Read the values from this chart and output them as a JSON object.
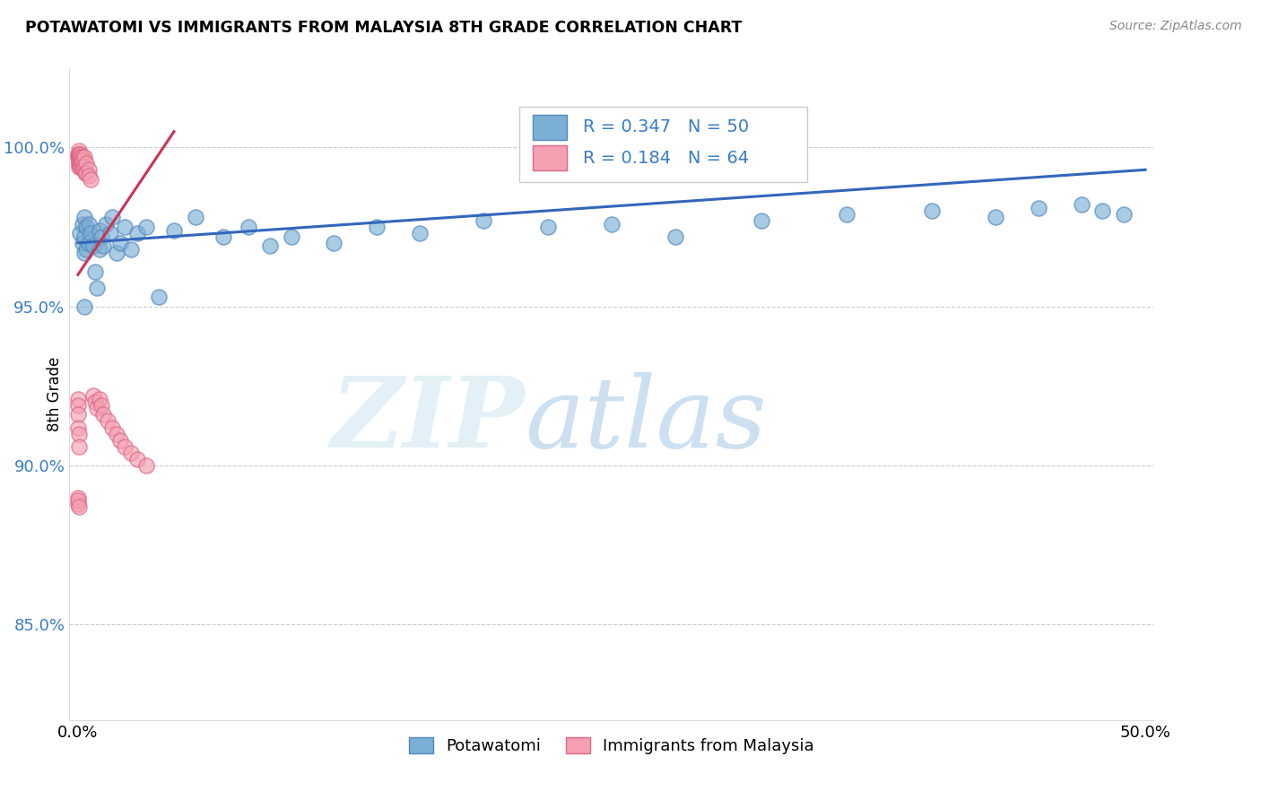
{
  "title": "POTAWATOMI VS IMMIGRANTS FROM MALAYSIA 8TH GRADE CORRELATION CHART",
  "source": "Source: ZipAtlas.com",
  "ylabel": "8th Grade",
  "blue_R": 0.347,
  "blue_N": 50,
  "pink_R": 0.184,
  "pink_N": 64,
  "blue_color": "#7BAFD4",
  "pink_color": "#F4A0B0",
  "blue_edge_color": "#5588BB",
  "pink_edge_color": "#DD6688",
  "blue_line_color": "#3366BB",
  "pink_line_color": "#CC3355",
  "legend_blue_label": "Potawatomi",
  "legend_pink_label": "Immigrants from Malaysia",
  "xlim": [
    -0.004,
    0.504
  ],
  "ylim": [
    0.82,
    1.025
  ],
  "yticks": [
    0.85,
    0.9,
    0.95,
    1.0
  ],
  "ytick_labels": [
    "85.0%",
    "90.0%",
    "95.0%",
    "100.0%"
  ],
  "xticks": [
    0.0,
    0.1,
    0.2,
    0.3,
    0.4,
    0.5
  ],
  "xtick_labels": [
    "0.0%",
    "",
    "",
    "",
    "",
    "50.0%"
  ],
  "blue_line_x0": 0.0,
  "blue_line_x1": 0.5,
  "blue_line_y0": 0.97,
  "blue_line_y1": 0.993,
  "pink_line_x0": 0.0,
  "pink_line_x1": 0.045,
  "pink_line_y0": 0.96,
  "pink_line_y1": 1.005,
  "blue_scatter_x": [
    0.001,
    0.002,
    0.002,
    0.003,
    0.003,
    0.003,
    0.004,
    0.004,
    0.005,
    0.005,
    0.006,
    0.007,
    0.008,
    0.009,
    0.01,
    0.01,
    0.011,
    0.012,
    0.013,
    0.015,
    0.016,
    0.018,
    0.02,
    0.022,
    0.025,
    0.028,
    0.032,
    0.038,
    0.045,
    0.055,
    0.068,
    0.08,
    0.09,
    0.1,
    0.12,
    0.14,
    0.16,
    0.19,
    0.22,
    0.25,
    0.28,
    0.32,
    0.36,
    0.4,
    0.43,
    0.45,
    0.47,
    0.48,
    0.49,
    0.003
  ],
  "blue_scatter_y": [
    0.973,
    0.976,
    0.97,
    0.978,
    0.972,
    0.967,
    0.975,
    0.968,
    0.976,
    0.97,
    0.973,
    0.969,
    0.961,
    0.956,
    0.974,
    0.968,
    0.972,
    0.969,
    0.976,
    0.973,
    0.978,
    0.967,
    0.97,
    0.975,
    0.968,
    0.973,
    0.975,
    0.953,
    0.974,
    0.978,
    0.972,
    0.975,
    0.969,
    0.972,
    0.97,
    0.975,
    0.973,
    0.977,
    0.975,
    0.976,
    0.972,
    0.977,
    0.979,
    0.98,
    0.978,
    0.981,
    0.982,
    0.98,
    0.979,
    0.95
  ],
  "pink_scatter_x": [
    0.0002,
    0.0002,
    0.0003,
    0.0003,
    0.0003,
    0.0004,
    0.0004,
    0.0004,
    0.0005,
    0.0005,
    0.0005,
    0.0006,
    0.0006,
    0.0006,
    0.0007,
    0.0007,
    0.0008,
    0.0008,
    0.0009,
    0.001,
    0.001,
    0.001,
    0.0012,
    0.0013,
    0.0014,
    0.0015,
    0.0016,
    0.0018,
    0.002,
    0.002,
    0.0022,
    0.0025,
    0.003,
    0.003,
    0.0035,
    0.004,
    0.004,
    0.005,
    0.005,
    0.006,
    0.007,
    0.008,
    0.009,
    0.01,
    0.011,
    0.012,
    0.014,
    0.016,
    0.018,
    0.02,
    0.022,
    0.025,
    0.028,
    0.032,
    0.0001,
    0.0001,
    0.0002,
    0.0002,
    0.0003,
    0.0003,
    0.0001,
    0.0001,
    0.0002,
    0.0003
  ],
  "pink_scatter_y": [
    0.998,
    0.997,
    0.999,
    0.997,
    0.996,
    0.998,
    0.997,
    0.995,
    0.998,
    0.997,
    0.995,
    0.998,
    0.997,
    0.994,
    0.997,
    0.996,
    0.997,
    0.995,
    0.996,
    0.998,
    0.996,
    0.994,
    0.997,
    0.995,
    0.997,
    0.994,
    0.996,
    0.995,
    0.997,
    0.994,
    0.996,
    0.993,
    0.997,
    0.994,
    0.992,
    0.995,
    0.992,
    0.993,
    0.991,
    0.99,
    0.922,
    0.92,
    0.918,
    0.921,
    0.919,
    0.916,
    0.914,
    0.912,
    0.91,
    0.908,
    0.906,
    0.904,
    0.902,
    0.9,
    0.921,
    0.919,
    0.916,
    0.912,
    0.91,
    0.906,
    0.89,
    0.888,
    0.889,
    0.887
  ]
}
